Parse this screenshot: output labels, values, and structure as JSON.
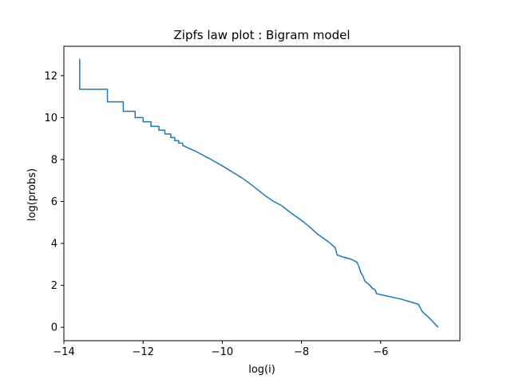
{
  "chart_data": {
    "type": "line",
    "title": "Zipfs law plot : Bigram model",
    "xlabel": "log(i)",
    "ylabel": "log(probs)",
    "xlim": [
      -14.0,
      -4.0
    ],
    "ylim": [
      -0.64,
      13.4
    ],
    "xticks": [
      -14,
      -12,
      -10,
      -8,
      -6
    ],
    "xtick_labels": [
      "−14",
      "−12",
      "−10",
      "−8",
      "−6"
    ],
    "yticks": [
      0,
      2,
      4,
      6,
      8,
      10,
      12
    ],
    "ytick_labels": [
      "0",
      "2",
      "4",
      "6",
      "8",
      "10",
      "12"
    ],
    "grid": false,
    "line_color": "#1f77b4",
    "series": [
      {
        "points": [
          [
            -13.6,
            12.8
          ],
          [
            -13.6,
            11.35
          ],
          [
            -12.9,
            11.35
          ],
          [
            -12.9,
            10.75
          ],
          [
            -12.5,
            10.75
          ],
          [
            -12.5,
            10.3
          ],
          [
            -12.2,
            10.3
          ],
          [
            -12.2,
            10.0
          ],
          [
            -12.0,
            10.0
          ],
          [
            -12.0,
            9.8
          ],
          [
            -11.8,
            9.8
          ],
          [
            -11.8,
            9.58
          ],
          [
            -11.6,
            9.58
          ],
          [
            -11.6,
            9.4
          ],
          [
            -11.45,
            9.4
          ],
          [
            -11.45,
            9.22
          ],
          [
            -11.3,
            9.22
          ],
          [
            -11.3,
            9.05
          ],
          [
            -11.2,
            9.05
          ],
          [
            -11.2,
            8.9
          ],
          [
            -11.1,
            8.9
          ],
          [
            -11.1,
            8.78
          ],
          [
            -11.0,
            8.78
          ],
          [
            -11.0,
            8.68
          ],
          [
            -10.9,
            8.58
          ],
          [
            -10.7,
            8.42
          ],
          [
            -10.5,
            8.22
          ],
          [
            -10.3,
            8.02
          ],
          [
            -10.0,
            7.7
          ],
          [
            -9.7,
            7.35
          ],
          [
            -9.5,
            7.12
          ],
          [
            -9.3,
            6.85
          ],
          [
            -9.1,
            6.55
          ],
          [
            -8.9,
            6.25
          ],
          [
            -8.7,
            6.0
          ],
          [
            -8.5,
            5.8
          ],
          [
            -8.3,
            5.5
          ],
          [
            -8.0,
            5.1
          ],
          [
            -7.8,
            4.8
          ],
          [
            -7.6,
            4.45
          ],
          [
            -7.3,
            4.05
          ],
          [
            -7.15,
            3.8
          ],
          [
            -7.1,
            3.45
          ],
          [
            -6.95,
            3.35
          ],
          [
            -6.75,
            3.25
          ],
          [
            -6.6,
            3.1
          ],
          [
            -6.55,
            2.9
          ],
          [
            -6.5,
            2.6
          ],
          [
            -6.45,
            2.45
          ],
          [
            -6.4,
            2.2
          ],
          [
            -6.3,
            2.05
          ],
          [
            -6.2,
            1.85
          ],
          [
            -6.15,
            1.8
          ],
          [
            -6.1,
            1.6
          ],
          [
            -5.5,
            1.35
          ],
          [
            -5.05,
            1.1
          ],
          [
            -4.95,
            0.75
          ],
          [
            -4.75,
            0.4
          ],
          [
            -4.55,
            0.0
          ]
        ]
      }
    ]
  }
}
